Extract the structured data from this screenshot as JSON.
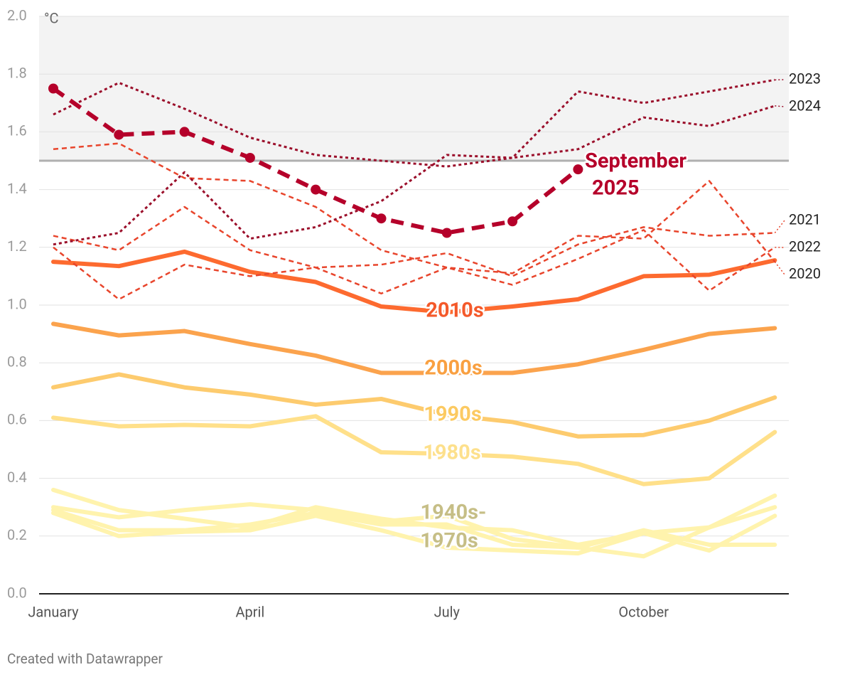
{
  "chart_data": {
    "type": "line",
    "source": "Created with Datawrapper",
    "unit": "°C",
    "categories": [
      "January",
      null,
      null,
      "April",
      null,
      null,
      "July",
      null,
      null,
      "October",
      null,
      null
    ],
    "ylim": [
      0,
      2.0
    ],
    "yticks": [
      {
        "value": 0,
        "label": "0.0"
      },
      0.2,
      0.4,
      0.6,
      0.8,
      {
        "value": 1,
        "label": "1.0"
      },
      1.2,
      1.4,
      1.6,
      1.8,
      {
        "value": 2,
        "label": "2.0"
      }
    ],
    "grid": true,
    "threshold": 1.5,
    "series": [
      {
        "color": "#fff3ad",
        "line_style": "solid",
        "values": [
          0.36,
          0.29,
          0.26,
          0.23,
          0.3,
          0.26,
          0.23,
          0.22,
          0.17,
          0.21,
          0.15,
          0.27
        ]
      },
      {
        "color": "#fff3ad",
        "line_style": "solid",
        "values": [
          0.3,
          0.265,
          0.29,
          0.31,
          0.29,
          0.25,
          0.27,
          0.19,
          0.16,
          0.13,
          0.23,
          0.34
        ]
      },
      {
        "color": "#fff3ad",
        "line_style": "solid",
        "values": [
          0.28,
          0.2,
          0.215,
          0.22,
          0.27,
          0.22,
          0.16,
          0.15,
          0.14,
          0.21,
          0.23,
          0.3
        ]
      },
      {
        "color": "#fff3ad",
        "line_style": "solid",
        "values": [
          0.29,
          0.22,
          0.22,
          0.24,
          0.28,
          0.24,
          0.24,
          0.17,
          0.16,
          0.22,
          0.17,
          0.17
        ]
      },
      {
        "name": "1980s",
        "color": "#ffe08a",
        "label_color": "#fde08c",
        "line_style": "solid",
        "values": [
          0.61,
          0.58,
          0.585,
          0.58,
          0.615,
          0.49,
          0.485,
          0.475,
          0.45,
          0.38,
          0.4,
          0.56
        ]
      },
      {
        "name": "1990s",
        "color": "#fdcb6e",
        "label_color": "#fcca62",
        "line_style": "solid",
        "values": [
          0.715,
          0.76,
          0.715,
          0.69,
          0.655,
          0.675,
          0.62,
          0.595,
          0.545,
          0.55,
          0.6,
          0.68
        ]
      },
      {
        "name": "2000s",
        "color": "#fba34d",
        "label_color": "#f9a041",
        "line_style": "solid",
        "values": [
          0.935,
          0.895,
          0.91,
          0.865,
          0.825,
          0.765,
          0.765,
          0.765,
          0.795,
          0.845,
          0.9,
          0.92
        ]
      },
      {
        "name": "2010s",
        "color": "#fd6a2f",
        "label_color": "#f4592a",
        "line_style": "solid",
        "values": [
          1.15,
          1.135,
          1.185,
          1.115,
          1.08,
          0.995,
          0.975,
          0.995,
          1.02,
          1.1,
          1.105,
          1.155
        ]
      },
      {
        "name": "2020",
        "color": "#e8452c",
        "line_style": "dashed",
        "values": [
          1.54,
          1.56,
          1.44,
          1.43,
          1.34,
          1.19,
          1.13,
          1.11,
          1.24,
          1.23,
          1.43,
          1.15
        ]
      },
      {
        "name": "2021",
        "color": "#e8452c",
        "line_style": "dashed",
        "values": [
          1.24,
          1.19,
          1.34,
          1.19,
          1.13,
          1.14,
          1.18,
          1.1,
          1.21,
          1.27,
          1.24,
          1.25
        ]
      },
      {
        "name": "2022",
        "color": "#e8452c",
        "line_style": "dashed",
        "values": [
          1.2,
          1.02,
          1.14,
          1.1,
          1.13,
          1.04,
          1.13,
          1.07,
          1.16,
          1.26,
          1.05,
          1.2
        ]
      },
      {
        "name": "2023",
        "color": "#9b0f2b",
        "line_style": "dotted",
        "values": [
          1.66,
          1.77,
          1.68,
          1.58,
          1.52,
          1.5,
          1.48,
          1.51,
          1.74,
          1.7,
          1.74,
          1.78
        ]
      },
      {
        "name": "2024",
        "color": "#9b0f2b",
        "line_style": "dotted",
        "values": [
          1.21,
          1.25,
          1.46,
          1.23,
          1.27,
          1.36,
          1.52,
          1.51,
          1.54,
          1.65,
          1.62,
          1.69
        ]
      },
      {
        "label_lines": [
          "September",
          "2025"
        ],
        "color": "#b5002a",
        "label_color": "#b5002a",
        "line_style": "bold-dashed",
        "markers": true,
        "values": [
          1.75,
          1.59,
          1.6,
          1.51,
          1.4,
          1.3,
          1.25,
          1.29,
          1.47,
          null,
          null,
          null
        ]
      }
    ],
    "annotations": [
      {
        "text_lines": [
          "1940s-",
          "1970s"
        ],
        "color": "#c6be86"
      }
    ]
  }
}
